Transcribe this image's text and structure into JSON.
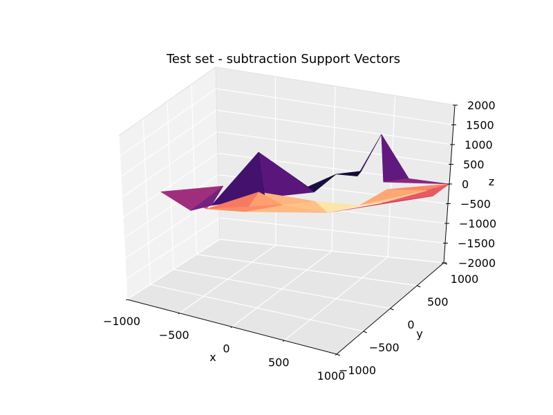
{
  "chart_data": {
    "type": "surface3d",
    "title": "Test set - subtraction Support Vectors",
    "xlabel": "x",
    "ylabel": "y",
    "zlabel": "z",
    "xlim": [
      -1000,
      1000
    ],
    "ylim": [
      -1000,
      1000
    ],
    "zlim": [
      -2000,
      2000
    ],
    "xticks": [
      -1000,
      -500,
      0,
      500,
      1000
    ],
    "yticks": [
      -1000,
      -500,
      0,
      500,
      1000
    ],
    "zticks": [
      -2000,
      -1500,
      -1000,
      -500,
      0,
      500,
      1000,
      1500,
      2000
    ],
    "xtick_labels": [
      "−1000",
      "−500",
      "0",
      "500",
      "1000"
    ],
    "ytick_labels": [
      "−1000",
      "−500",
      "0",
      "500",
      "1000"
    ],
    "ztick_labels": [
      "−2000",
      "−1500",
      "−1000",
      "−500",
      "0",
      "500",
      "1000",
      "1500",
      "2000"
    ],
    "grid": true,
    "colormap": "magma",
    "surface_facets": [
      {
        "x": [
          -1000,
          -600,
          -550
        ],
        "y": [
          -200,
          -500,
          50
        ],
        "z": [
          0,
          -10,
          150
        ],
        "c": 0.45
      },
      {
        "x": [
          -600,
          -500,
          -550
        ],
        "y": [
          -500,
          -300,
          50
        ],
        "z": [
          -10,
          0,
          150
        ],
        "c": 0.35
      },
      {
        "x": [
          -500,
          -200,
          -300
        ],
        "y": [
          -300,
          100,
          200
        ],
        "z": [
          0,
          0,
          950
        ],
        "c": 0.22
      },
      {
        "x": [
          -200,
          100,
          -300
        ],
        "y": [
          100,
          400,
          200
        ],
        "z": [
          0,
          0,
          950
        ],
        "c": 0.28
      },
      {
        "x": [
          -300,
          100,
          0
        ],
        "y": [
          200,
          400,
          500
        ],
        "z": [
          950,
          0,
          0
        ],
        "c": 0.15
      },
      {
        "x": [
          0,
          200,
          100
        ],
        "y": [
          500,
          600,
          400
        ],
        "z": [
          0,
          300,
          0
        ],
        "c": 0.12
      },
      {
        "x": [
          200,
          350,
          250
        ],
        "y": [
          600,
          750,
          900
        ],
        "z": [
          300,
          300,
          0
        ],
        "c": 0.1
      },
      {
        "x": [
          350,
          400,
          250
        ],
        "y": [
          750,
          1000,
          900
        ],
        "z": [
          300,
          1000,
          0
        ],
        "c": 0.2
      },
      {
        "x": [
          400,
          650,
          500
        ],
        "y": [
          1000,
          1000,
          850
        ],
        "z": [
          1000,
          0,
          0
        ],
        "c": 0.3
      },
      {
        "x": [
          650,
          1000,
          500
        ],
        "y": [
          1000,
          1000,
          850
        ],
        "z": [
          0,
          0,
          0
        ],
        "c": 0.4
      },
      {
        "x": [
          -1000,
          -550,
          -500
        ],
        "y": [
          -200,
          50,
          -400
        ],
        "z": [
          0,
          150,
          0
        ],
        "c": 0.6
      },
      {
        "x": [
          -500,
          -300,
          -200
        ],
        "y": [
          -400,
          200,
          -300
        ],
        "z": [
          0,
          0,
          0
        ],
        "c": 0.72
      },
      {
        "x": [
          -200,
          -300,
          0
        ],
        "y": [
          -300,
          200,
          0
        ],
        "z": [
          0,
          0,
          0
        ],
        "c": 0.8
      },
      {
        "x": [
          0,
          -300,
          200
        ],
        "y": [
          0,
          200,
          200
        ],
        "z": [
          0,
          0,
          0
        ],
        "c": 0.85
      },
      {
        "x": [
          0,
          200,
          400
        ],
        "y": [
          0,
          200,
          0
        ],
        "z": [
          0,
          0,
          0
        ],
        "c": 0.88
      },
      {
        "x": [
          200,
          400,
          500
        ],
        "y": [
          200,
          0,
          400
        ],
        "z": [
          0,
          0,
          -150
        ],
        "c": 0.95
      },
      {
        "x": [
          400,
          700,
          500
        ],
        "y": [
          0,
          400,
          400
        ],
        "z": [
          0,
          0,
          -150
        ],
        "c": 0.97
      },
      {
        "x": [
          700,
          900,
          500
        ],
        "y": [
          400,
          800,
          400
        ],
        "z": [
          0,
          0,
          -150
        ],
        "c": 0.9
      },
      {
        "x": [
          500,
          900,
          600
        ],
        "y": [
          400,
          800,
          700
        ],
        "z": [
          -150,
          0,
          0
        ],
        "c": 0.82
      },
      {
        "x": [
          600,
          900,
          1000
        ],
        "y": [
          700,
          800,
          1000
        ],
        "z": [
          0,
          0,
          0
        ],
        "c": 0.75
      },
      {
        "x": [
          700,
          1000,
          1000
        ],
        "y": [
          400,
          1000,
          700
        ],
        "z": [
          0,
          0,
          0
        ],
        "c": 0.65
      },
      {
        "x": [
          400,
          700,
          1000
        ],
        "y": [
          0,
          400,
          700
        ],
        "z": [
          0,
          0,
          0
        ],
        "c": 0.58
      },
      {
        "x": [
          -500,
          -200,
          0
        ],
        "y": [
          -400,
          -300,
          0
        ],
        "z": [
          0,
          0,
          0
        ],
        "c": 0.76
      },
      {
        "x": [
          -200,
          0,
          400
        ],
        "y": [
          -300,
          0,
          0
        ],
        "z": [
          0,
          0,
          0
        ],
        "c": 0.86
      }
    ]
  }
}
